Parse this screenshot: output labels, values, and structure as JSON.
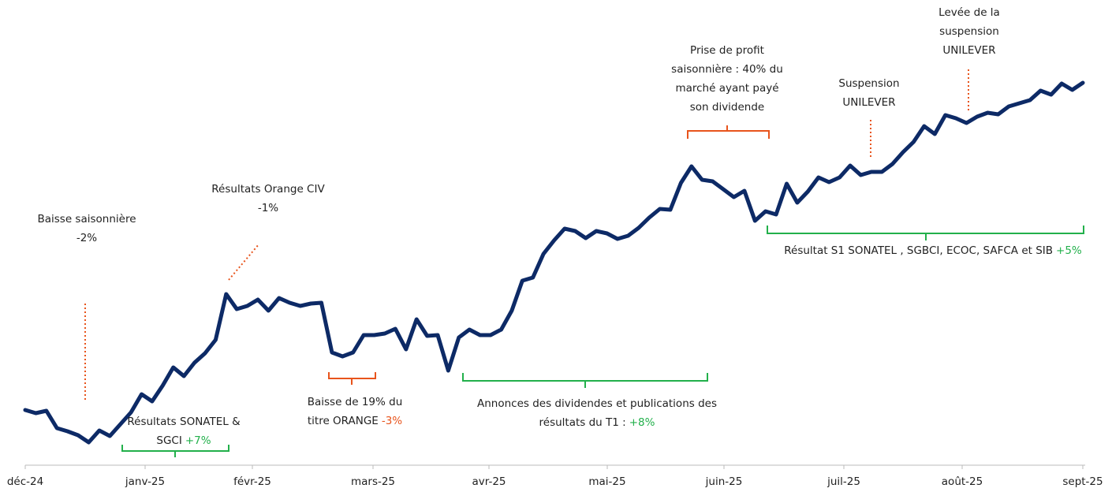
{
  "chart_data": {
    "type": "line",
    "x_labels": [
      "déc-24",
      "janv-25",
      "févr-25",
      "mars-25",
      "avr-25",
      "mai-25",
      "juin-25",
      "juil-25",
      "août-25",
      "sept-25"
    ],
    "series": [
      {
        "color": "#0d2a66",
        "values": [
          14,
          13.2,
          13.8,
          9.4,
          8.6,
          7.6,
          5.8,
          8.8,
          7.4,
          10.4,
          13.4,
          18,
          16.2,
          20.2,
          24.8,
          22.6,
          26,
          28.4,
          31.8,
          43.4,
          39.6,
          40.4,
          42,
          39.2,
          42.4,
          41.2,
          40.4,
          41,
          41.2,
          28.6,
          27.6,
          28.6,
          33,
          33,
          33.4,
          34.6,
          29.4,
          37,
          32.8,
          33,
          24,
          32.4,
          34.4,
          33,
          33,
          34.4,
          39.2,
          46.8,
          47.6,
          53.6,
          57,
          60,
          59.4,
          57.6,
          59.4,
          58.8,
          57.4,
          58.2,
          60.2,
          62.8,
          65,
          64.8,
          71.6,
          75.8,
          72.4,
          72,
          70,
          68,
          69.6,
          62,
          64.4,
          63.6,
          71.4,
          66.6,
          69.4,
          73,
          71.8,
          73,
          76,
          73.6,
          74.4,
          74.4,
          76.4,
          79.4,
          82,
          86,
          84,
          88.8,
          88,
          86.8,
          88.4,
          89.4,
          89,
          91,
          91.8,
          92.6,
          95,
          94,
          96.8,
          95.2,
          97
        ]
      }
    ],
    "ylim": [
      0,
      100
    ],
    "annotations": [
      {
        "lines": [
          "Baisse saisonnière"
        ],
        "change": "-2%",
        "change_color": "#e0322b"
      },
      {
        "lines": [
          "Résultats Orange CIV"
        ],
        "change": "-1%",
        "change_color": "#e0322b"
      },
      {
        "lines": [
          "Résultats SONATEL &",
          "SGCI"
        ],
        "change": "+7%",
        "change_color": "#22b04b"
      },
      {
        "lines": [
          "Baisse de 19% du",
          "titre ORANGE"
        ],
        "change": "-3%",
        "change_color": "#e8541c"
      },
      {
        "lines": [
          "Annonces des dividendes et publications des",
          "résultats du T1 :"
        ],
        "change": "+8%",
        "change_color": "#22b04b"
      },
      {
        "lines": [
          "Prise de profit",
          "saisonnière : 40% du",
          "marché ayant payé",
          "son dividende"
        ]
      },
      {
        "lines": [
          "Suspension",
          "UNILEVER"
        ]
      },
      {
        "lines": [
          "Levée de la",
          "suspension",
          "UNILEVER"
        ]
      },
      {
        "lines": [
          "Résultat S1 SONATEL , SGBCI, ECOC, SAFCA et SIB"
        ],
        "change": "+5%",
        "change_color": "#22b04b"
      }
    ]
  }
}
